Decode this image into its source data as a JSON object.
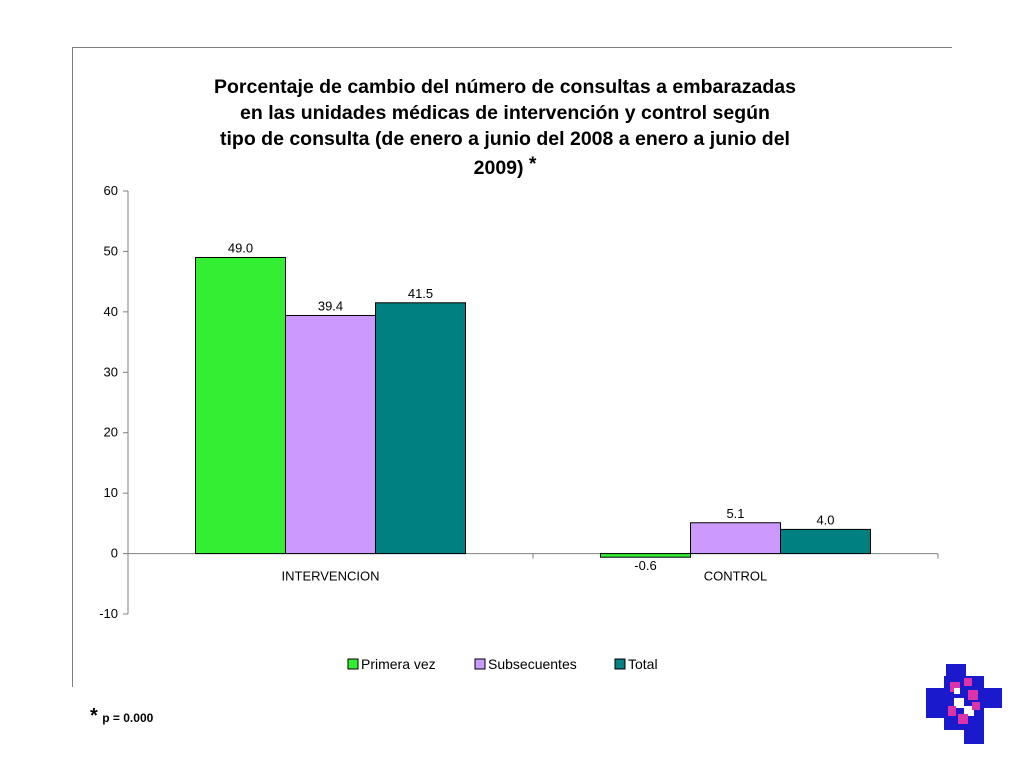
{
  "chart_data": {
    "type": "bar",
    "title": "Porcentaje de cambio del número de consultas  a embarazadas en  las  unidades  médicas  de  intervención y control según tipo de consulta (de enero a junio del 2008 a enero a junio del 2009)",
    "title_lines": [
      "Porcentaje de cambio del número de consultas  a embarazadas",
      "en  las  unidades  médicas  de  intervención y control según",
      "tipo de consulta (de enero a junio del 2008 a enero a junio del",
      "2009)"
    ],
    "title_marker": "*",
    "categories": [
      "INTERVENCION",
      "CONTROL"
    ],
    "series": [
      {
        "name": "Primera vez",
        "values": [
          49.0,
          -0.6
        ],
        "labels": [
          "49.0",
          "-0.6"
        ],
        "color": "#33ee33"
      },
      {
        "name": "Subsecuentes",
        "values": [
          39.4,
          5.1
        ],
        "labels": [
          "39.4",
          "5.1"
        ],
        "color": "#cc99ff"
      },
      {
        "name": "Total",
        "values": [
          41.5,
          4.0
        ],
        "labels": [
          "41.5",
          "4.0"
        ],
        "color": "#008080"
      }
    ],
    "ylim": [
      -10,
      60
    ],
    "yticks": [
      -10,
      0,
      10,
      20,
      30,
      40,
      50,
      60
    ],
    "xlabel": "",
    "ylabel": "",
    "grid": false,
    "legend_position": "bottom"
  },
  "footnote": {
    "marker": "*",
    "text": "p = 0.000"
  },
  "logo": {
    "icon": "institution-logo-icon",
    "colors": [
      "#1a1acc",
      "#dd33aa",
      "#ffffff"
    ]
  }
}
